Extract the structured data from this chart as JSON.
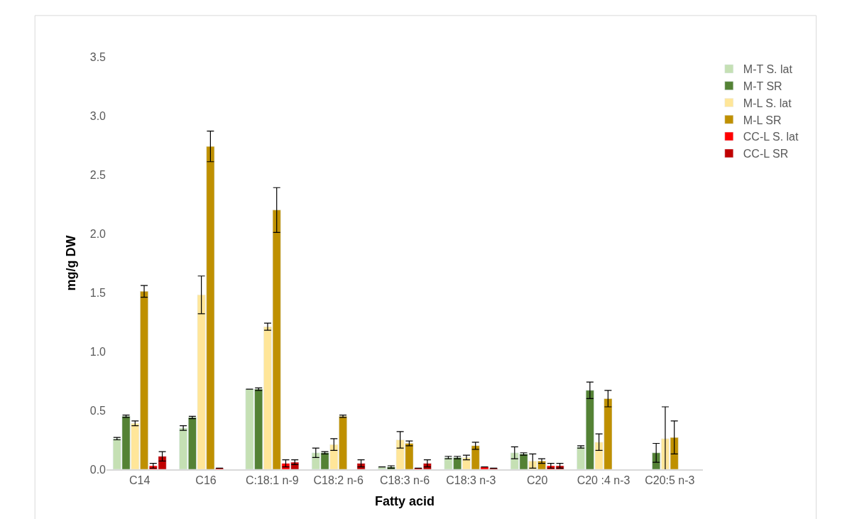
{
  "chart_data": {
    "type": "bar",
    "xlabel": "Fatty acid",
    "ylabel": "mg/g DW",
    "categories": [
      "C14",
      "C16",
      "C:18:1 n-9",
      "C18:2 n-6",
      "C18:3 n-6",
      "C18:3 n-3",
      "C20",
      "C20 :4 n-3",
      "C20:5 n-3"
    ],
    "series": [
      {
        "name": "M-T S. lat",
        "color": "#c5e0b4",
        "values": [
          0.26,
          0.35,
          0.68,
          0.14,
          0.02,
          0.1,
          0.14,
          0.19,
          null
        ],
        "errors": [
          0.01,
          0.02,
          0.0,
          0.04,
          0.0,
          0.01,
          0.05,
          0.01,
          null
        ]
      },
      {
        "name": "M-T SR",
        "color": "#548235",
        "values": [
          0.45,
          0.44,
          0.68,
          0.14,
          0.02,
          0.1,
          0.13,
          0.67,
          0.14
        ],
        "errors": [
          0.01,
          0.01,
          0.01,
          0.01,
          0.01,
          0.01,
          0.01,
          0.07,
          0.08
        ]
      },
      {
        "name": "M-L S. lat",
        "color": "#ffe699",
        "values": [
          0.39,
          1.48,
          1.21,
          0.21,
          0.25,
          0.1,
          0.07,
          0.23,
          0.26
        ],
        "errors": [
          0.02,
          0.16,
          0.03,
          0.05,
          0.07,
          0.02,
          0.06,
          0.07,
          0.27
        ]
      },
      {
        "name": "M-L SR",
        "color": "#bf9000",
        "values": [
          1.51,
          2.74,
          2.2,
          0.45,
          0.22,
          0.2,
          0.07,
          0.6,
          0.27
        ],
        "errors": [
          0.05,
          0.13,
          0.19,
          0.01,
          0.02,
          0.03,
          0.02,
          0.07,
          0.14
        ]
      },
      {
        "name": "CC-L S. lat",
        "color": "#ff0000",
        "values": [
          0.03,
          0.01,
          0.05,
          null,
          0.01,
          0.02,
          0.03,
          null,
          null
        ],
        "errors": [
          0.02,
          null,
          0.03,
          null,
          null,
          0.0,
          0.02,
          null,
          null
        ]
      },
      {
        "name": "CC-L SR",
        "color": "#c00000",
        "values": [
          0.11,
          null,
          0.06,
          0.05,
          0.05,
          0.01,
          0.03,
          null,
          null
        ],
        "errors": [
          0.04,
          null,
          0.02,
          0.03,
          0.03,
          0.0,
          0.02,
          null,
          null
        ]
      }
    ],
    "ylim": [
      0,
      3.5
    ],
    "yticks": [
      {
        "value": 0,
        "label": "0.0"
      },
      {
        "value": 0.5,
        "label": "0.5"
      },
      {
        "value": 1,
        "label": "1.0"
      },
      {
        "value": 1.5,
        "label": "1.5"
      },
      {
        "value": 2,
        "label": "2.0"
      },
      {
        "value": 2.5,
        "label": "2.5"
      },
      {
        "value": 3,
        "label": "3.0"
      },
      {
        "value": 3.5,
        "label": "3.5"
      }
    ],
    "legend": "right"
  }
}
